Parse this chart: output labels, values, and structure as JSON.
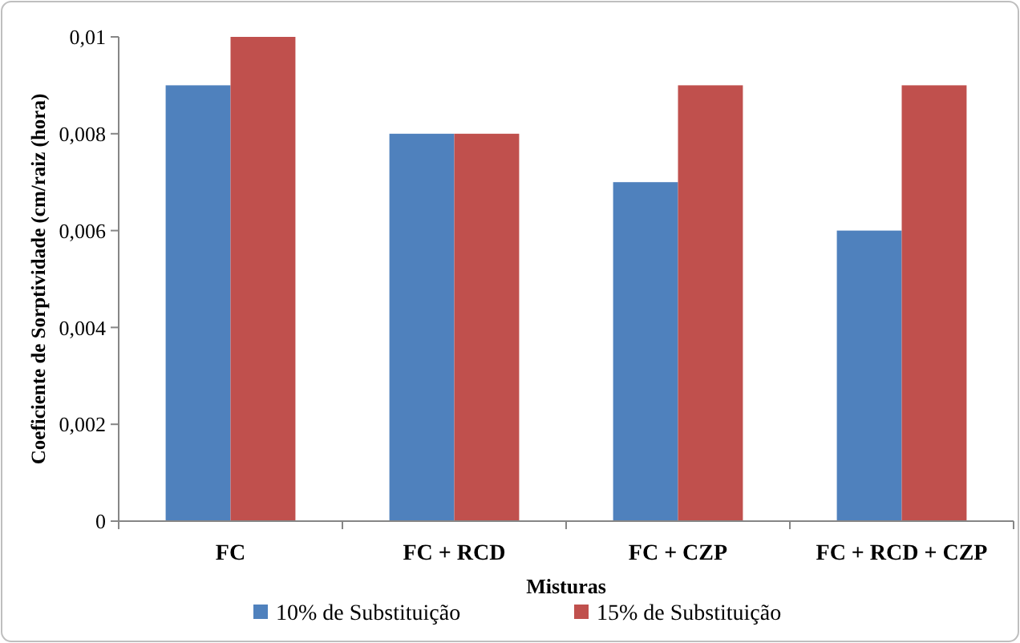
{
  "chart_data": {
    "type": "bar",
    "categories": [
      "FC",
      "FC + RCD",
      "FC + CZP",
      "FC + RCD + CZP"
    ],
    "series": [
      {
        "name": "10% de Substituição",
        "color": "#4f81bd",
        "values": [
          0.009,
          0.008,
          0.007,
          0.006
        ]
      },
      {
        "name": "15% de Substituição",
        "color": "#c0504d",
        "values": [
          0.01,
          0.008,
          0.009,
          0.009
        ]
      }
    ],
    "xlabel": "Misturas",
    "ylabel": "Coeficiente de Sorptividade (cm/raiz (hora)",
    "ylim": [
      0,
      0.01
    ],
    "yticks": [
      0,
      {
        "value": 0.002,
        "label": "0,002"
      },
      {
        "value": 0.004,
        "label": "0,004"
      },
      {
        "value": 0.006,
        "label": "0,006"
      },
      {
        "value": 0.008,
        "label": "0,008"
      },
      {
        "value": 0.01,
        "label": "0,01"
      }
    ],
    "grid": false,
    "legend": "bottom"
  }
}
